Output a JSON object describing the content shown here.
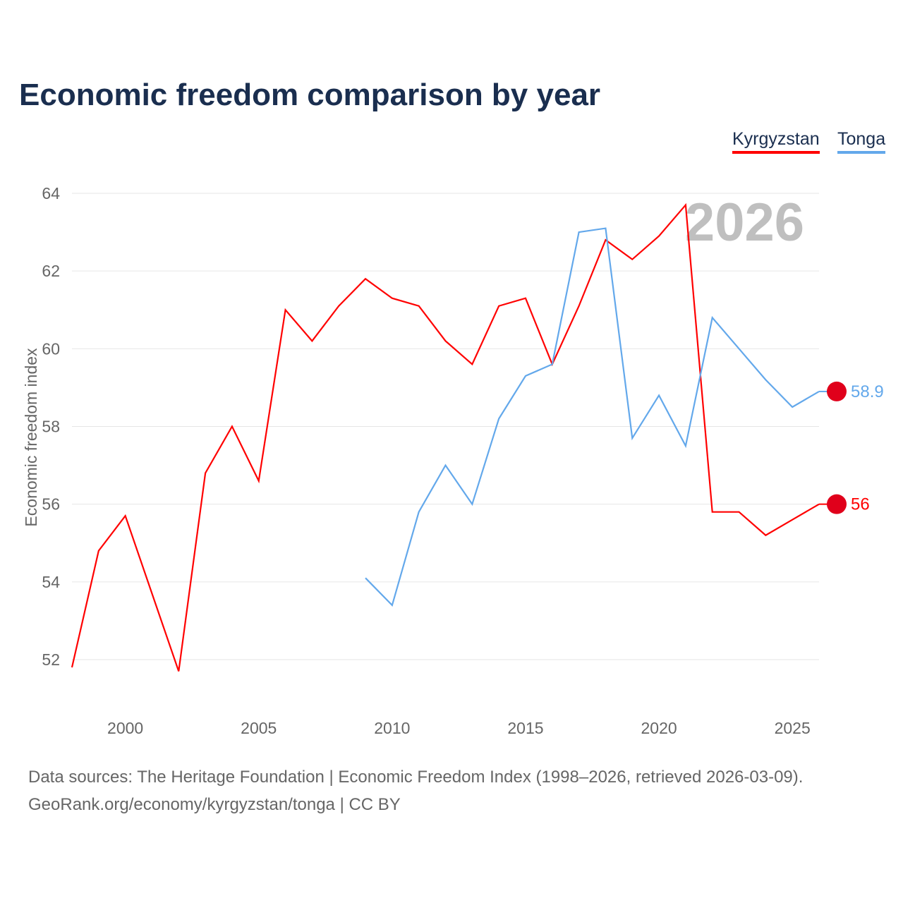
{
  "title": "Economic freedom comparison by year",
  "source_line1": "Data sources: The Heritage Foundation | Economic Freedom Index (1998–2026, retrieved 2026-03-09).",
  "source_line2": "GeoRank.org/economy/kyrgyzstan/tonga | CC BY",
  "chart_data": {
    "type": "line",
    "title": "Economic freedom comparison by year",
    "ylabel": "Economic freedom index",
    "xlabel": "",
    "xlim": [
      1998,
      2026
    ],
    "ylim": [
      52,
      64
    ],
    "yticks": [
      52,
      54,
      56,
      58,
      60,
      62,
      64
    ],
    "xticks": [
      2000,
      2005,
      2010,
      2015,
      2020,
      2025
    ],
    "year_label": "2026",
    "legend_position": "top-right",
    "series": [
      {
        "name": "Kyrgyzstan",
        "color": "#ff0000",
        "end_label": "56",
        "x": [
          1998,
          1999,
          2000,
          2001,
          2002,
          2003,
          2004,
          2005,
          2006,
          2007,
          2008,
          2009,
          2010,
          2011,
          2012,
          2013,
          2014,
          2015,
          2016,
          2017,
          2018,
          2019,
          2020,
          2021,
          2022,
          2023,
          2024,
          2025,
          2026
        ],
        "y": [
          51.8,
          54.8,
          55.7,
          53.7,
          51.7,
          56.8,
          58.0,
          56.6,
          61.0,
          60.2,
          61.1,
          61.8,
          61.3,
          61.1,
          60.2,
          59.6,
          61.1,
          61.3,
          59.6,
          61.1,
          62.8,
          62.3,
          62.9,
          63.7,
          55.8,
          55.8,
          55.2,
          55.6,
          56.0
        ]
      },
      {
        "name": "Tonga",
        "color": "#63a8eb",
        "end_label": "58.9",
        "x": [
          2009,
          2010,
          2011,
          2012,
          2013,
          2014,
          2015,
          2016,
          2017,
          2018,
          2019,
          2020,
          2021,
          2022,
          2023,
          2024,
          2025,
          2026
        ],
        "y": [
          54.1,
          53.4,
          55.8,
          57.0,
          56.0,
          58.2,
          59.3,
          59.6,
          63.0,
          63.1,
          57.7,
          58.8,
          57.5,
          60.8,
          60.0,
          59.2,
          58.5,
          58.9
        ]
      }
    ]
  }
}
